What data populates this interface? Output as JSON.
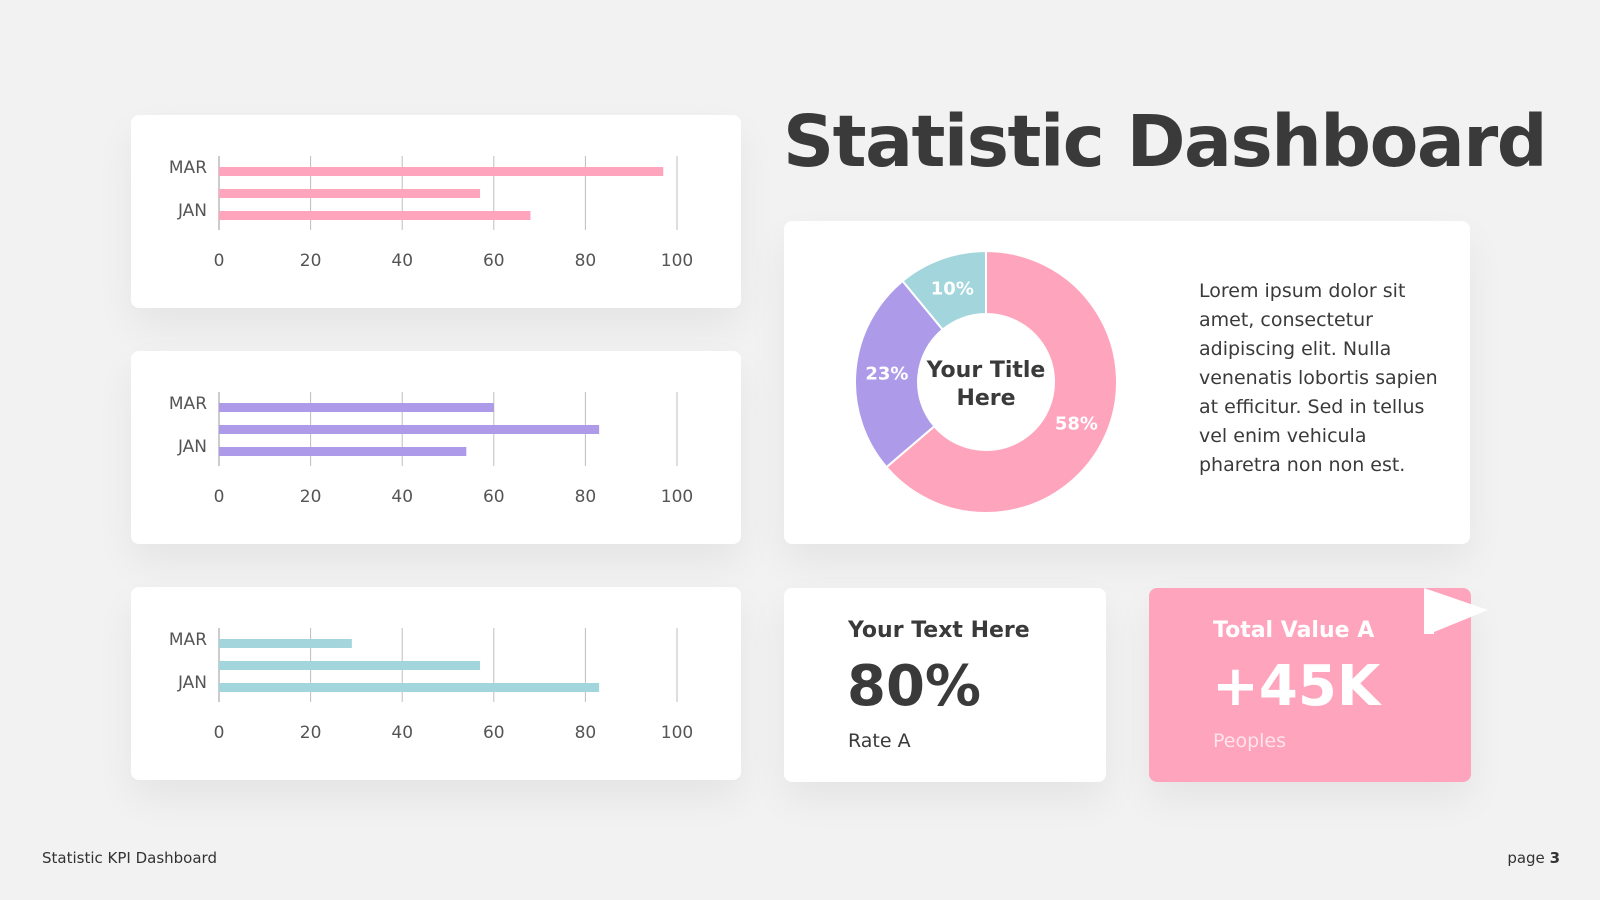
{
  "title": "Statistic Dashboard",
  "chart_data": [
    {
      "type": "bar",
      "orientation": "horizontal",
      "tick_labels": [
        "MAR",
        "JAN"
      ],
      "xlim": [
        0,
        100
      ],
      "xticks": [
        0,
        20,
        40,
        60,
        80,
        100
      ],
      "values": [
        97,
        57,
        68
      ],
      "color": "#ffa4bd"
    },
    {
      "type": "bar",
      "orientation": "horizontal",
      "tick_labels": [
        "MAR",
        "JAN"
      ],
      "xlim": [
        0,
        100
      ],
      "xticks": [
        0,
        20,
        40,
        60,
        80,
        100
      ],
      "values": [
        60,
        83,
        54
      ],
      "color": "#ad9bea"
    },
    {
      "type": "bar",
      "orientation": "horizontal",
      "tick_labels": [
        "MAR",
        "JAN"
      ],
      "xlim": [
        0,
        100
      ],
      "xticks": [
        0,
        20,
        40,
        60,
        80,
        100
      ],
      "values": [
        29,
        57,
        83
      ],
      "color": "#a2d6dc"
    },
    {
      "type": "pie",
      "donut": true,
      "center_label": [
        "Your Title",
        "Here"
      ],
      "slices": [
        {
          "label": "58%",
          "value": 58,
          "color": "#ffa4bd"
        },
        {
          "label": "23%",
          "value": 23,
          "color": "#ad9bea"
        },
        {
          "label": "10%",
          "value": 10,
          "color": "#a2d6dc"
        }
      ]
    }
  ],
  "description": "Lorem ipsum dolor sit amet, consectetur adipiscing elit. Nulla venenatis lobortis sapien at efficitur. Sed in tellus vel enim vehicula pharetra non non est.",
  "kpis": [
    {
      "heading": "Your Text Here",
      "value": "80%",
      "sub": "Rate A"
    },
    {
      "heading": "Total Value A",
      "value": "+45K",
      "sub": "Peoples"
    }
  ],
  "footer": {
    "left": "Statistic KPI Dashboard",
    "page_prefix": "page",
    "page_number": "3"
  },
  "colors": {
    "background": "#f2f2f2",
    "text": "#3a3a3a",
    "pink": "#ffa4bd",
    "purple": "#ad9bea",
    "teal": "#a2d6dc"
  }
}
